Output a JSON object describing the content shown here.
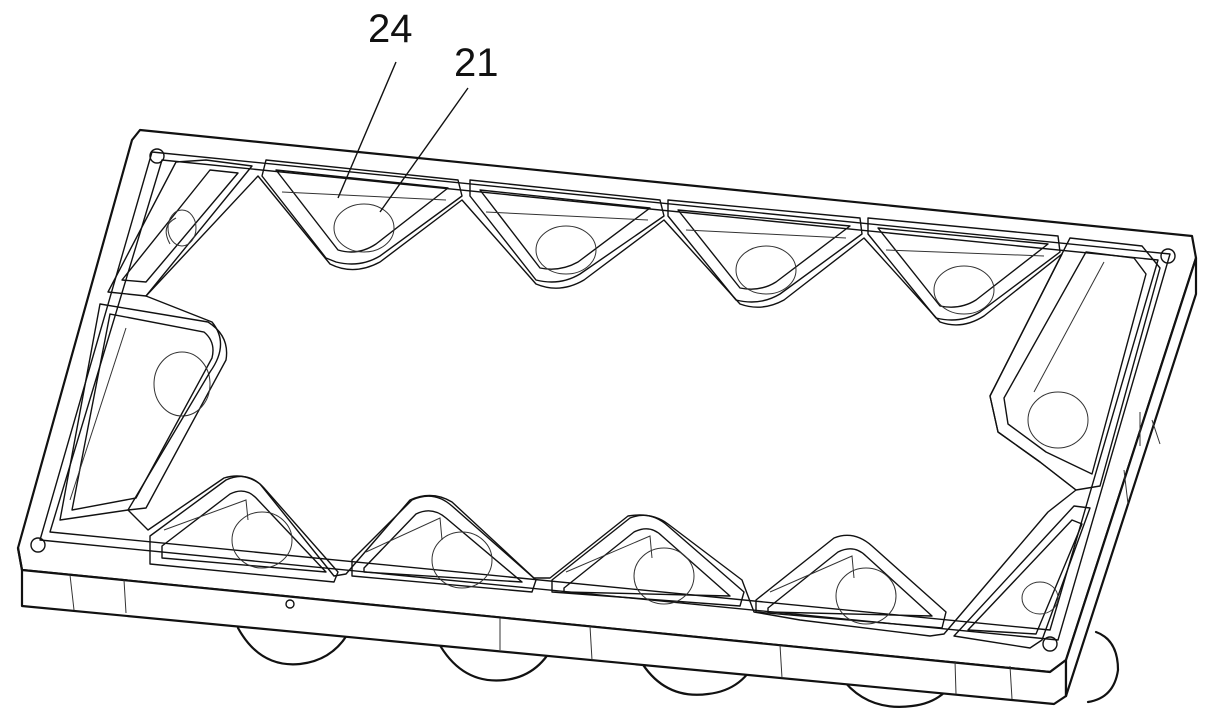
{
  "figure": {
    "reference_labels": [
      {
        "id": "label-24",
        "text": "24"
      },
      {
        "id": "label-21",
        "text": "21"
      }
    ]
  },
  "colors": {
    "line": "#111111",
    "background": "#ffffff"
  }
}
